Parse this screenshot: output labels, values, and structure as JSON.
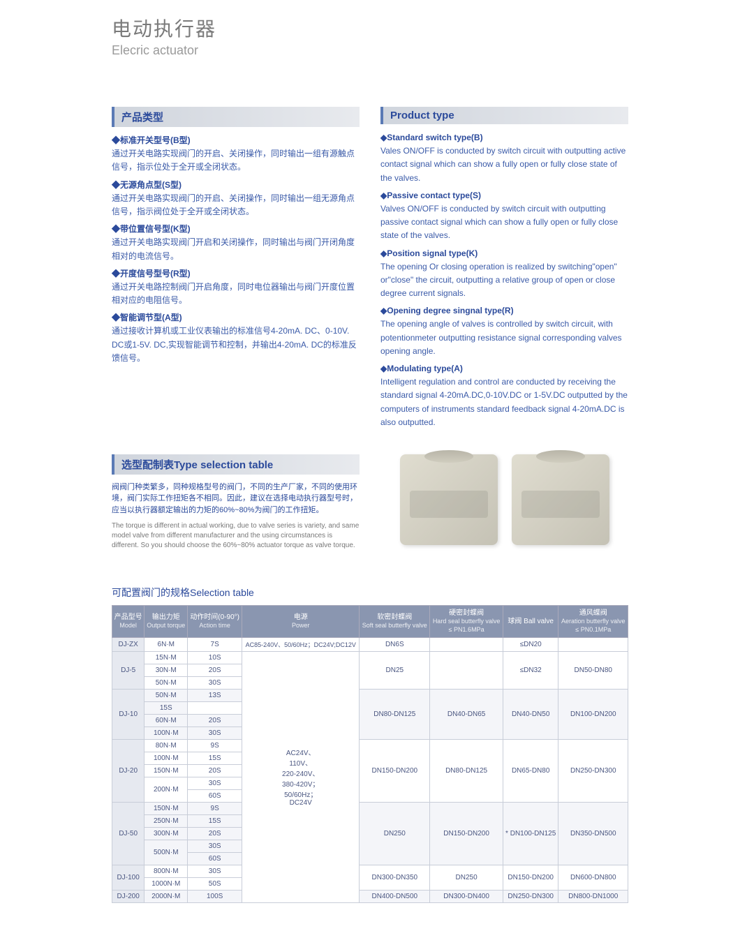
{
  "header": {
    "title_cn": "电动执行器",
    "title_en": "Elecric actuator"
  },
  "left": {
    "heading": "产品类型",
    "items": [
      {
        "t": "◆标准开关型号(B型)",
        "d": "通过开关电路实现阀门的开启、关闭操作，同时输出一组有源触点信号，指示位处于全开或全闭状态。"
      },
      {
        "t": "◆无源角点型(S型)",
        "d": "通过开关电路实现阀门的开启、关闭操作，同时输出一组无源角点信号，指示阀位处于全开或全闭状态。"
      },
      {
        "t": "◆带位置信号型(K型)",
        "d": "通过开关电路实现阀门开启和关闭操作，同时输出与阀门开闭角度相对的电流信号。"
      },
      {
        "t": "◆开度信号型号(R型)",
        "d": "通过开关电路控制阀门开启角度，同时电位器输出与阀门开度位置相对应的电阻信号。"
      },
      {
        "t": "◆智能调节型(A型)",
        "d": "通过接收计算机或工业仪表输出的标准信号4-20mA. DC、0-10V. DC或1-5V. DC,实现智能调节和控制，并输出4-20mA. DC的标准反馈信号。"
      }
    ]
  },
  "right": {
    "heading": "Product type",
    "items": [
      {
        "t": "◆Standard switch type(B)",
        "d": "Vales ON/OFF is conducted by switch circuit with outputting active contact signal which can show a fully open or fully close state of the valves."
      },
      {
        "t": "◆Passive contact type(S)",
        "d": "Valves ON/OFF is conducted by switch circuit with outputting passive contact signal which can show a fully open or fully close state of the valves."
      },
      {
        "t": "◆Position signal type(K)",
        "d": "The opening Or closing operation is realized by switching\"open\" or\"close\" the circuit, outputting a relative group of open or close degree current signals."
      },
      {
        "t": "◆Opening degree singnal type(R)",
        "d": "The opening angle of valves is controlled by switch circuit, with potentionmeter outputting resistance signal corresponding valves opening angle."
      },
      {
        "t": "◆Modulating type(A)",
        "d": "Intelligent regulation and control are conducted by receiving the standard signal 4-20mA.DC,0-10V.DC or 1-5V.DC outputted by the computers of instruments standard feedback signal 4-20mA.DC is also outputted."
      }
    ]
  },
  "selection": {
    "heading": "选型配制表Type selection table",
    "note_cn": "阀阀门种类繁多，同种规格型号的阀门，不同的生产厂家，不同的使用环境，阀门实际工作扭矩各不相同。因此，建议在选择电动执行器型号时，应当以执行器额定输出的力矩的60%~80%为阀门的工作扭矩。",
    "note_en": "The torque is different in actual working, due to valve series is variety, and same model valve from different manufacturer and the using circumstances is different. So you should choose the 60%~80% actuator torque as valve torque."
  },
  "table": {
    "title": "可配置阀门的规格Selection table",
    "headers": [
      {
        "cn": "产品型号",
        "en": "Model"
      },
      {
        "cn": "输出力矩",
        "en": "Output torque"
      },
      {
        "cn": "动作时间(0-90°)",
        "en": "Action time"
      },
      {
        "cn": "电源",
        "en": "Power"
      },
      {
        "cn": "软密封蝶阀",
        "en": "Soft seal butterfly valve"
      },
      {
        "cn": "硬密封蝶阀",
        "en": "Hard seal butterfly valve",
        "sub2": "≤ PN1.6MPa"
      },
      {
        "cn": "球阀 Ball valve",
        "en": ""
      },
      {
        "cn": "通风蝶阀",
        "en": "Aeration butterfly valve",
        "sub2": "≤ PN0.1MPa"
      }
    ],
    "power_top": "AC85-240V、50/60Hz；DC24V;DC12V",
    "power_main": "AC24V、110V、220-240V、380-420V；50/60Hz；DC24V",
    "rows": [
      {
        "model": "DJ-ZX",
        "torque": "6N·M",
        "time": "7S",
        "soft": "DN6S",
        "hard": "",
        "ball": "≤DN20",
        "aer": "",
        "stripe": 0,
        "mr": 1,
        "sr": 1,
        "hr": 1,
        "br": 1,
        "ar": 1
      },
      {
        "model": "DJ-5",
        "torque": "15N·M",
        "time": "10S",
        "soft": "DN25",
        "hard": "",
        "ball": "≤DN32",
        "aer": "DN50-DN80",
        "stripe": 0,
        "mr": 3,
        "sr": 3,
        "hr": 3,
        "br": 3,
        "ar": 3
      },
      {
        "torque": "30N·M",
        "time": "20S",
        "stripe": 0
      },
      {
        "torque": "50N·M",
        "time": "30S",
        "stripe": 0
      },
      {
        "model": "DJ-10",
        "torque": "50N·M",
        "time": "13S",
        "soft": "DN80-DN125",
        "hard": "DN40-DN65",
        "ball": "DN40-DN50",
        "aer": "DN100-DN200",
        "stripe": 1,
        "mr": 4,
        "tr": 1,
        "sr": 4,
        "hr": 4,
        "br": 4,
        "ar": 4
      },
      {
        "time": "15S",
        "stripe": 1
      },
      {
        "torque": "60N·M",
        "time": "20S",
        "stripe": 1
      },
      {
        "torque": "100N·M",
        "time": "30S",
        "stripe": 1
      },
      {
        "model": "DJ-20",
        "torque": "80N·M",
        "time": "9S",
        "soft": "DN150-DN200",
        "hard": "DN80-DN125",
        "ball": "DN65-DN80",
        "aer": "DN250-DN300",
        "stripe": 0,
        "mr": 5,
        "sr": 5,
        "hr": 5,
        "br": 5,
        "ar": 5
      },
      {
        "torque": "100N·M",
        "time": "15S",
        "stripe": 0
      },
      {
        "torque": "150N·M",
        "time": "20S",
        "stripe": 0
      },
      {
        "torque": "200N·M",
        "time": "30S",
        "stripe": 0,
        "tr": 2
      },
      {
        "time": "60S",
        "stripe": 0
      },
      {
        "model": "DJ-50",
        "torque": "150N·M",
        "time": "9S",
        "soft": "DN250",
        "hard": "DN150-DN200",
        "ball": "DN100-DN125",
        "aer": "DN350-DN500",
        "stripe": 1,
        "mr": 5,
        "sr": 5,
        "hr": 5,
        "br": 5,
        "ar": 5,
        "mark": "*"
      },
      {
        "torque": "250N·M",
        "time": "15S",
        "stripe": 1
      },
      {
        "torque": "300N·M",
        "time": "20S",
        "stripe": 1
      },
      {
        "torque": "500N·M",
        "time": "30S",
        "stripe": 1,
        "tr": 2
      },
      {
        "time": "60S",
        "stripe": 1
      },
      {
        "model": "DJ-100",
        "torque": "800N·M",
        "time": "30S",
        "soft": "DN300-DN350",
        "hard": "DN250",
        "ball": "DN150-DN200",
        "aer": "DN600-DN800",
        "stripe": 0,
        "mr": 2,
        "sr": 2,
        "hr": 2,
        "br": 2,
        "ar": 2
      },
      {
        "torque": "1000N·M",
        "time": "50S",
        "stripe": 0
      },
      {
        "model": "DJ-200",
        "torque": "2000N·M",
        "time": "100S",
        "soft": "DN400-DN500",
        "hard": "DN300-DN400",
        "ball": "DN250-DN300",
        "aer": "DN800-DN1000",
        "stripe": 1,
        "mr": 1,
        "sr": 1,
        "hr": 1,
        "br": 1,
        "ar": 1
      }
    ]
  }
}
